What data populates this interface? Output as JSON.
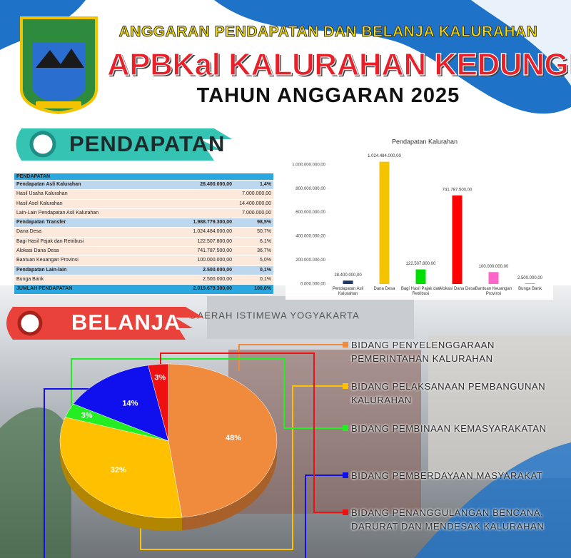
{
  "header": {
    "subtitle": "ANGGARAN PENDAPATAN DAN BELANJA KALURAHAN",
    "title": "APBKal KALURAHAN KEDUNGKERIS",
    "year": "TAHUN ANGGARAN 2025"
  },
  "sections": {
    "income": "PENDAPATAN",
    "spending": "BELANJA"
  },
  "background": {
    "sign": "DAERAH ISTIMEWA YOGYAKARTA"
  },
  "table": {
    "rows": [
      [
        "PENDAPATAN"
      ],
      [
        "Pendapatan Asli Kalurahan",
        "28.400.000,00",
        "1,4%"
      ],
      [
        "Hasil Usaha Kalurahan",
        "7.000.000,00"
      ],
      [
        "Hasil Asel Kalurahan",
        "14.400.000,00"
      ],
      [
        "Lain-Lain Pendapatan Asli Kalurahan",
        "7.000.000,00"
      ],
      [
        "Pendapatan Transfer",
        "1.988.779.300,00",
        "98,5%"
      ],
      [
        "Dana Desa",
        "1.024.484.000,00",
        "50,7%"
      ],
      [
        "Bagi Hasil Pajak dan Retribusi",
        "122.507.800,00",
        "6,1%"
      ],
      [
        "Alokasi Dana Desa",
        "741.787.500,00",
        "36,7%"
      ],
      [
        "Bantuan Keuangan Provinsi",
        "100.000.000,00",
        "5,0%"
      ],
      [
        "Pendapatan Lain-lain",
        "2.500.000,00",
        "0,1%"
      ],
      [
        "Bunga Bank",
        "2.500.000,00",
        "0,1%"
      ],
      [
        "JUMLAH PENDAPATAN",
        "2.019.679.300,00",
        "100,0%"
      ]
    ]
  },
  "chart_data": [
    {
      "type": "bar",
      "title": "Pendapatan Kalurahan",
      "categories": [
        "Pendapatan Asli Kalurahan",
        "Dana Desa",
        "Bagi Hasil Pajak dan Retribusi",
        "Alokasi Dana Desa",
        "Bantuan Keuangan Provinsi",
        "Bunga Bank"
      ],
      "values": [
        28400000,
        1024484000,
        122507800,
        741787500,
        100000000,
        2500000
      ],
      "value_labels": [
        "28.400.000,00",
        "1.024.484.000,00",
        "122.507.800,00",
        "741.787.500,00",
        "100.000.000,00",
        "2.500.000,00"
      ],
      "colors": [
        "#1f3864",
        "#f5c400",
        "#00e000",
        "#ff0000",
        "#ff66cc",
        "#1f3864"
      ],
      "ylim": [
        0,
        1100000000
      ],
      "yticks": [
        {
          "value": 0,
          "label": "0.000.000,00"
        },
        {
          "value": 200000000,
          "label": "200.000.000,00"
        },
        {
          "value": 400000000,
          "label": "400.000.000,00"
        },
        {
          "value": 600000000,
          "label": "600.000.000,00"
        },
        {
          "value": 800000000,
          "label": "800.000.000,00"
        },
        {
          "value": 1000000000,
          "label": "1.000.000.000,00"
        }
      ],
      "grid": false
    },
    {
      "type": "pie",
      "categories": [
        "BIDANG PENYELENGGARAAN PEMERINTAHAN KALURAHAN",
        "BIDANG PELAKSANAAN PEMBANGUNAN KALURAHAN",
        "BIDANG PEMBINAAN KEMASYARAKATAN",
        "BIDANG PEMBERDAYAAN MASYARAKAT",
        "BIDANG PENANGGULANGAN BENCANA, DARURAT DAN MENDESAK KALURAHAN"
      ],
      "values": [
        48,
        32,
        3,
        14,
        3
      ],
      "value_labels": [
        "48%",
        "32%",
        "3%",
        "14%",
        "3%"
      ],
      "colors": [
        "#f08a3c",
        "#ffc000",
        "#22ee22",
        "#1010ee",
        "#ee1111"
      ]
    }
  ]
}
